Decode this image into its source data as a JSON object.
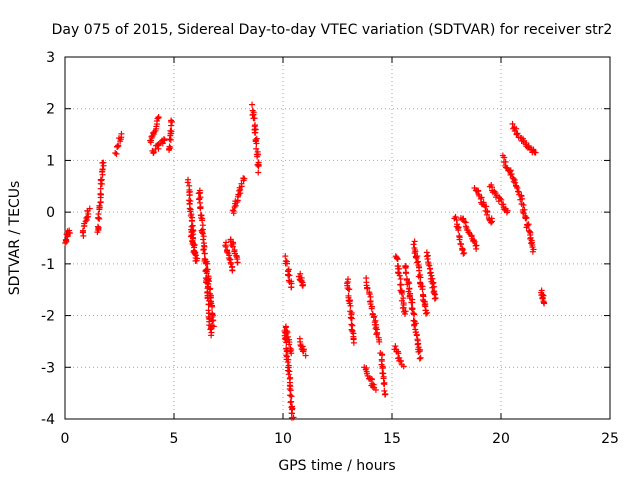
{
  "chart_data": {
    "type": "scatter",
    "title": "Day 075 of 2015, Sidereal Day-to-day VTEC variation (SDTVAR) for receiver str2",
    "xlabel": "GPS time / hours",
    "ylabel": "SDTVAR / TECUs",
    "xlim": [
      0,
      25
    ],
    "ylim": [
      -4,
      3
    ],
    "xticks": [
      "0",
      "5",
      "10",
      "15",
      "20",
      "25"
    ],
    "yticks": [
      "-4",
      "-3",
      "-2",
      "-1",
      "0",
      "1",
      "2",
      "3"
    ],
    "grid": true,
    "marker": "+",
    "marker_color": "#ff0000",
    "clusters": [
      {
        "x0": 0.0,
        "x1": 0.2,
        "y0": -0.6,
        "y1": -0.35
      },
      {
        "x0": 0.8,
        "x1": 1.1,
        "y0": -0.45,
        "y1": 0.1
      },
      {
        "x0": 1.5,
        "x1": 1.75,
        "y0": -0.4,
        "y1": 1.0
      },
      {
        "x0": 2.3,
        "x1": 2.6,
        "y0": 1.15,
        "y1": 1.5
      },
      {
        "x0": 3.9,
        "x1": 4.3,
        "y0": 1.35,
        "y1": 1.85
      },
      {
        "x0": 4.0,
        "x1": 4.6,
        "y0": 1.15,
        "y1": 1.45
      },
      {
        "x0": 4.8,
        "x1": 4.9,
        "y0": 1.2,
        "y1": 1.8
      },
      {
        "x0": 5.65,
        "x1": 5.95,
        "y0": 0.6,
        "y1": -0.9
      },
      {
        "x0": 5.75,
        "x1": 6.05,
        "y0": -0.3,
        "y1": -0.95
      },
      {
        "x0": 6.15,
        "x1": 6.7,
        "y0": 0.45,
        "y1": -2.4
      },
      {
        "x0": 6.5,
        "x1": 6.8,
        "y0": -1.0,
        "y1": -2.2
      },
      {
        "x0": 7.35,
        "x1": 7.7,
        "y0": -0.6,
        "y1": -1.15
      },
      {
        "x0": 7.6,
        "x1": 7.95,
        "y0": -0.5,
        "y1": -1.0
      },
      {
        "x0": 7.7,
        "x1": 8.2,
        "y0": 0.0,
        "y1": 0.65
      },
      {
        "x0": 8.6,
        "x1": 8.9,
        "y0": 2.05,
        "y1": 0.8
      },
      {
        "x0": 10.1,
        "x1": 10.45,
        "y0": -2.3,
        "y1": -4.0
      },
      {
        "x0": 10.1,
        "x1": 10.4,
        "y0": -0.9,
        "y1": -1.5
      },
      {
        "x0": 10.1,
        "x1": 10.4,
        "y0": -2.25,
        "y1": -2.7
      },
      {
        "x0": 10.75,
        "x1": 10.95,
        "y0": -1.2,
        "y1": -1.4
      },
      {
        "x0": 10.8,
        "x1": 11.0,
        "y0": -2.5,
        "y1": -2.75
      },
      {
        "x0": 12.95,
        "x1": 13.25,
        "y0": -1.3,
        "y1": -2.5
      },
      {
        "x0": 13.75,
        "x1": 14.25,
        "y0": -3.0,
        "y1": -3.45
      },
      {
        "x0": 13.8,
        "x1": 14.4,
        "y0": -1.3,
        "y1": -2.5
      },
      {
        "x0": 14.5,
        "x1": 14.7,
        "y0": -2.7,
        "y1": -3.55
      },
      {
        "x0": 15.1,
        "x1": 15.5,
        "y0": -2.6,
        "y1": -2.95
      },
      {
        "x0": 15.2,
        "x1": 15.6,
        "y0": -0.85,
        "y1": -2.0
      },
      {
        "x0": 15.6,
        "x1": 16.3,
        "y0": -1.0,
        "y1": -2.8
      },
      {
        "x0": 16.0,
        "x1": 16.6,
        "y0": -0.6,
        "y1": -2.0
      },
      {
        "x0": 16.6,
        "x1": 17.0,
        "y0": -0.8,
        "y1": -1.7
      },
      {
        "x0": 17.9,
        "x1": 18.3,
        "y0": -0.1,
        "y1": -0.85
      },
      {
        "x0": 18.2,
        "x1": 18.9,
        "y0": -0.1,
        "y1": -0.7
      },
      {
        "x0": 18.8,
        "x1": 19.6,
        "y0": 0.5,
        "y1": -0.2
      },
      {
        "x0": 19.5,
        "x1": 20.3,
        "y0": 0.5,
        "y1": 0.0
      },
      {
        "x0": 20.1,
        "x1": 20.9,
        "y0": 1.05,
        "y1": 0.35
      },
      {
        "x0": 20.5,
        "x1": 21.6,
        "y0": 1.65,
        "y1": 1.1
      },
      {
        "x0": 20.9,
        "x1": 21.5,
        "y0": 0.3,
        "y1": -0.75
      },
      {
        "x0": 21.85,
        "x1": 22.0,
        "y0": -1.55,
        "y1": -1.75
      }
    ]
  }
}
